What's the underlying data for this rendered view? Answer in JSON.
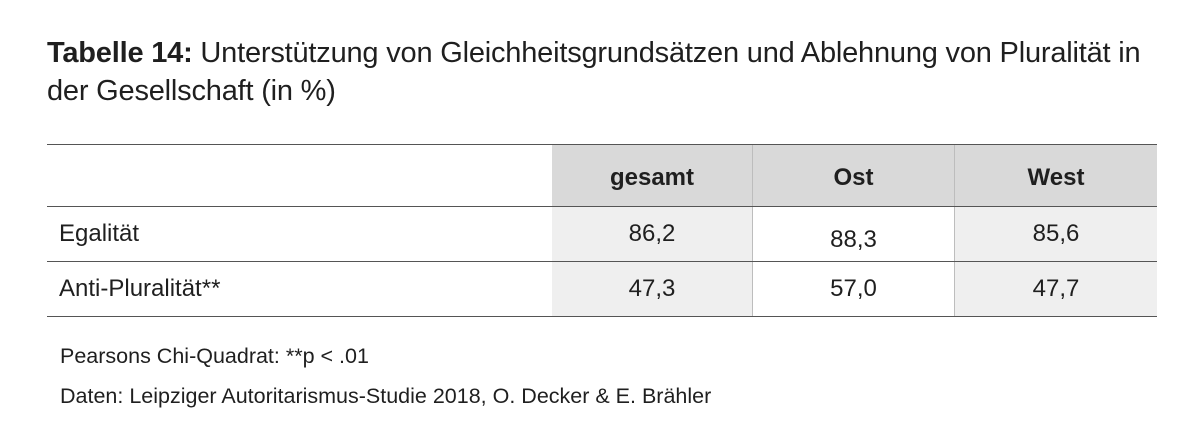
{
  "caption": {
    "label": "Tabelle 14:",
    "text": " Unterstützung von Gleichheitsgrundsätzen und Ablehnung von Pluralität in der Gesellschaft (in %)"
  },
  "table": {
    "columns": [
      "gesamt",
      "Ost",
      "West"
    ],
    "rows": [
      {
        "label": "Egalität",
        "values": [
          "86,2",
          "88,3",
          "85,6"
        ]
      },
      {
        "label": "Anti-Pluralität**",
        "values": [
          "47,3",
          "57,0",
          "47,7"
        ]
      }
    ]
  },
  "notes": {
    "significance": "Pearsons Chi-Quadrat: **p < .01",
    "source": "Daten: Leipziger Autoritarismus-Studie 2018, O. Decker & E. Brähler"
  }
}
